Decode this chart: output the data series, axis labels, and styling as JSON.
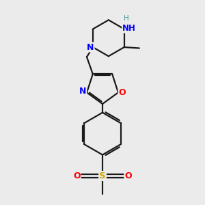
{
  "bg_color": "#ebebeb",
  "bond_color": "#1a1a1a",
  "N_color": "#0000ff",
  "O_color": "#ff0000",
  "S_color": "#ccaa00",
  "H_color": "#4a9a9a",
  "line_width": 1.6,
  "fig_size": [
    3.0,
    3.0
  ],
  "dpi": 100,
  "xlim": [
    0,
    10
  ],
  "ylim": [
    0,
    10
  ]
}
